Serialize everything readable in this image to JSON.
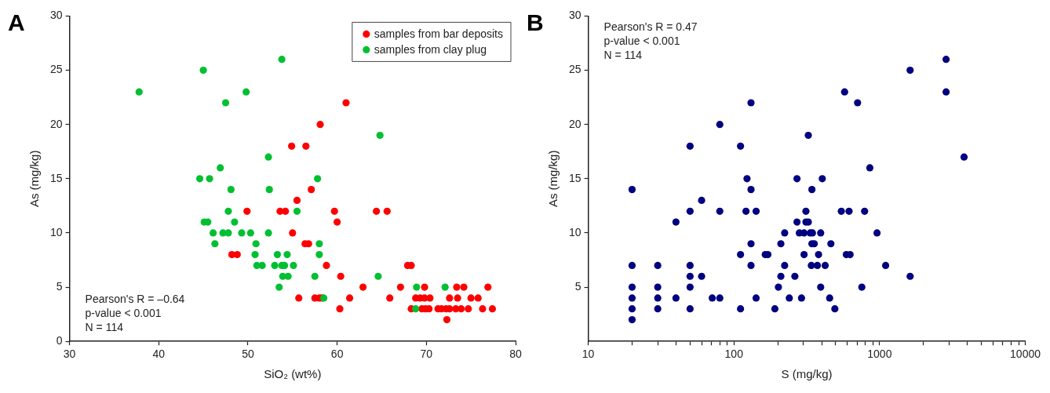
{
  "chart_data": [
    {
      "type": "scatter",
      "title": "A",
      "xlabel": "SiO₂ (wt%)",
      "ylabel": "As (mg/kg)",
      "xlim": [
        30,
        80
      ],
      "xticks": [
        30,
        40,
        50,
        60,
        70,
        80
      ],
      "ylim": [
        0,
        30
      ],
      "yticks": [
        0,
        5,
        10,
        15,
        20,
        25,
        30
      ],
      "grid": false,
      "legend": "top right",
      "marker": "circle",
      "annotations": [
        "Pearson's R = –0.64",
        "p-value < 0.001",
        "N = 114"
      ],
      "series": [
        {
          "name": "samples from bar deposits",
          "color": "#ff0000",
          "x": [
            54.9,
            55.5,
            49.9,
            53.6,
            54.2,
            55.0,
            48.2,
            48.8,
            55.7,
            61.0,
            58.1,
            56.5,
            57.1,
            59.7,
            64.4,
            65.6,
            60.0,
            56.4,
            56.8,
            58.8,
            67.9,
            68.3,
            60.4,
            62.9,
            67.1,
            69.8,
            73.4,
            74.2,
            76.9,
            57.5,
            58.0,
            58.3,
            61.4,
            65.9,
            68.8,
            69.3,
            69.8,
            70.4,
            72.6,
            73.5,
            75.0,
            75.8,
            60.3,
            68.3,
            69.5,
            69.9,
            70.3,
            71.3,
            71.7,
            72.2,
            72.6,
            73.3,
            73.9,
            74.7,
            76.3,
            77.4,
            72.3
          ],
          "values": [
            18,
            13,
            12,
            12,
            12,
            10,
            8,
            8,
            4,
            22,
            20,
            18,
            14,
            12,
            12,
            12,
            11,
            9,
            9,
            7,
            7,
            7,
            6,
            5,
            5,
            5,
            5,
            5,
            5,
            4,
            4,
            4,
            4,
            4,
            4,
            4,
            4,
            4,
            4,
            4,
            4,
            4,
            3,
            3,
            3,
            3,
            3,
            3,
            3,
            3,
            3,
            3,
            3,
            3,
            3,
            3,
            2
          ]
        },
        {
          "name": "samples from clay plug",
          "color": "#00c032",
          "x": [
            37.8,
            45.0,
            47.5,
            49.8,
            53.8,
            52.3,
            46.9,
            44.6,
            45.7,
            48.1,
            52.4,
            47.8,
            55.5,
            45.1,
            45.5,
            48.5,
            46.1,
            47.2,
            47.8,
            49.3,
            50.3,
            52.3,
            46.3,
            50.9,
            50.8,
            53.3,
            54.4,
            51.0,
            51.6,
            53.0,
            53.8,
            54.1,
            55.1,
            53.9,
            54.5,
            53.5,
            64.8,
            57.8,
            58.0,
            58.0,
            57.5,
            64.6,
            68.9,
            72.1,
            58.5,
            68.8
          ],
          "values": [
            23,
            25,
            22,
            23,
            26,
            17,
            16,
            15,
            15,
            14,
            14,
            12,
            12,
            11,
            11,
            11,
            10,
            10,
            10,
            10,
            10,
            10,
            9,
            9,
            8,
            8,
            8,
            7,
            7,
            7,
            7,
            7,
            7,
            6,
            6,
            5,
            19,
            15,
            9,
            8,
            6,
            6,
            5,
            5,
            4,
            3
          ]
        }
      ]
    },
    {
      "type": "scatter",
      "title": "B",
      "xlabel": "S (mg/kg)",
      "ylabel": "As (mg/kg)",
      "log": "x",
      "xlim": [
        10,
        10000
      ],
      "xticks": [
        10,
        {
          "value": 20,
          "label": null
        },
        {
          "value": 30,
          "label": null
        },
        {
          "value": 40,
          "label": null
        },
        {
          "value": 50,
          "label": null
        },
        {
          "value": 60,
          "label": null
        },
        {
          "value": 70,
          "label": null
        },
        {
          "value": 80,
          "label": null
        },
        {
          "value": 90,
          "label": null
        },
        100,
        {
          "value": 200,
          "label": null
        },
        {
          "value": 300,
          "label": null
        },
        {
          "value": 400,
          "label": null
        },
        {
          "value": 500,
          "label": null
        },
        {
          "value": 600,
          "label": null
        },
        {
          "value": 700,
          "label": null
        },
        {
          "value": 800,
          "label": null
        },
        {
          "value": 900,
          "label": null
        },
        1000,
        {
          "value": 2000,
          "label": null
        },
        {
          "value": 3000,
          "label": null
        },
        {
          "value": 4000,
          "label": null
        },
        {
          "value": 5000,
          "label": null
        },
        {
          "value": 6000,
          "label": null
        },
        {
          "value": 7000,
          "label": null
        },
        {
          "value": 8000,
          "label": null
        },
        {
          "value": 9000,
          "label": null
        },
        10000
      ],
      "ylim": [
        0,
        30
      ],
      "yticks": [
        5,
        10,
        15,
        20,
        25,
        30
      ],
      "grid": false,
      "marker": "circle",
      "annotations": [
        "Pearson's R = 0.47",
        "p-value < 0.001",
        "N = 114"
      ],
      "series": [
        {
          "color": "#000080",
          "x": [
            20,
            20,
            20,
            20,
            20,
            20,
            30,
            30,
            30,
            30,
            40,
            40,
            50,
            50,
            50,
            50,
            50,
            50,
            60,
            60,
            71,
            80,
            80,
            80,
            111,
            111,
            111,
            123,
            121,
            131,
            131,
            131,
            131,
            142,
            142,
            164,
            171,
            191,
            202,
            210,
            210,
            223,
            223,
            240,
            262,
            271,
            271,
            281,
            291,
            303,
            303,
            324,
            404,
            343,
            312,
            546,
            617,
            789,
            312,
            324,
            334,
            346,
            394,
            960,
            343,
            356,
            463,
            381,
            591,
            627,
            340,
            374,
            423,
            1100,
            1620,
            394,
            755,
            454,
            493,
            575,
            706,
            1620,
            2860,
            2860,
            3800,
            857
          ],
          "values": [
            14,
            7,
            5,
            4,
            3,
            2,
            7,
            5,
            4,
            3,
            11,
            4,
            18,
            12,
            7,
            6,
            5,
            3,
            13,
            6,
            4,
            20,
            12,
            4,
            18,
            8,
            3,
            15,
            12,
            22,
            14,
            9,
            7,
            12,
            4,
            8,
            8,
            3,
            5,
            9,
            6,
            10,
            7,
            4,
            6,
            15,
            11,
            10,
            4,
            10,
            8,
            19,
            15,
            14,
            12,
            12,
            12,
            12,
            11,
            11,
            10,
            10,
            10,
            10,
            9,
            9,
            9,
            8,
            8,
            8,
            7,
            7,
            7,
            7,
            6,
            5,
            5,
            4,
            3,
            23,
            22,
            25,
            26,
            23,
            17,
            16
          ]
        }
      ]
    }
  ]
}
